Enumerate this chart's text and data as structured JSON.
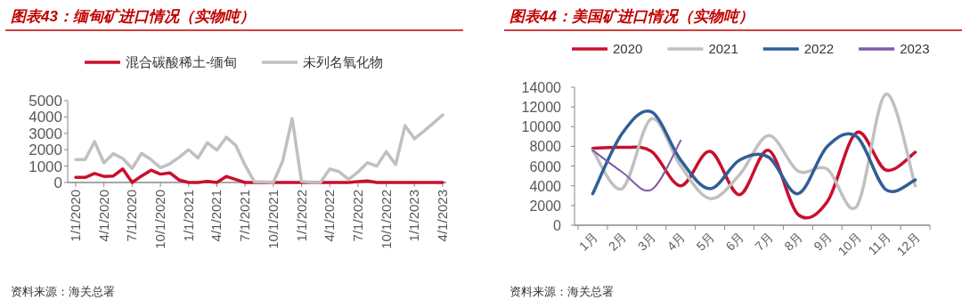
{
  "chart_data": [
    {
      "type": "line",
      "title": "图表43：缅甸矿进口情况（实物吨）",
      "annotations": [
        "资料来源：海关总署"
      ],
      "legend": "top",
      "grid": false,
      "categories": [
        "1/1/2020",
        null,
        null,
        "4/1/2020",
        null,
        null,
        "7/1/2020",
        null,
        null,
        "10/1/2020",
        null,
        null,
        "1/1/2021",
        null,
        null,
        "4/1/2021",
        null,
        null,
        "7/1/2021",
        null,
        null,
        "10/1/2021",
        null,
        null,
        "1/1/2022",
        null,
        null,
        "4/1/2022",
        null,
        null,
        "7/1/2022",
        null,
        null,
        "10/1/2022",
        null,
        null,
        "1/1/2023",
        null,
        null,
        "4/1/2023"
      ],
      "ylim": [
        0,
        5000
      ],
      "yticks": [
        0,
        1000,
        2000,
        3000,
        4000,
        5000
      ],
      "series": [
        {
          "name": "混合碳酸稀土-缅甸",
          "color": "#c8102e",
          "values": [
            310,
            310,
            550,
            370,
            400,
            830,
            0,
            400,
            750,
            510,
            590,
            150,
            0,
            0,
            70,
            0,
            370,
            180,
            0,
            0,
            0,
            0,
            0,
            0,
            0,
            0,
            0,
            0,
            0,
            0,
            50,
            100,
            0,
            0,
            0,
            0,
            0,
            0,
            0,
            0
          ]
        },
        {
          "name": "未列名氧化物",
          "color": "#c0c0c0",
          "values": [
            1400,
            1400,
            2500,
            1200,
            1760,
            1470,
            860,
            1780,
            1400,
            900,
            1140,
            1540,
            2000,
            1500,
            2430,
            1970,
            2760,
            2280,
            1050,
            40,
            40,
            0,
            1320,
            3900,
            70,
            20,
            0,
            830,
            660,
            180,
            640,
            1210,
            1000,
            1880,
            1100,
            3470,
            2670,
            3130,
            3620,
            4120
          ]
        }
      ]
    },
    {
      "type": "line",
      "title": "图表44：美国矿进口情况（实物吨）",
      "annotations": [
        "资料来源：海关总署"
      ],
      "legend": "top",
      "grid": false,
      "categories": [
        "1月",
        "2月",
        "3月",
        "4月",
        "5月",
        "6月",
        "7月",
        "8月",
        "9月",
        "10月",
        "11月",
        "12月"
      ],
      "ylim": [
        0,
        14000
      ],
      "yticks": [
        0,
        2000,
        4000,
        6000,
        8000,
        10000,
        12000,
        14000
      ],
      "series": [
        {
          "name": "2020",
          "color": "#c8102e",
          "values": [
            7800,
            7900,
            7500,
            4000,
            7500,
            3100,
            7600,
            1100,
            2400,
            9400,
            5600,
            7400
          ]
        },
        {
          "name": "2021",
          "color": "#c0c0c0",
          "values": [
            7600,
            3700,
            10800,
            6000,
            2700,
            5100,
            9100,
            5500,
            5700,
            1900,
            13300,
            4000
          ]
        },
        {
          "name": "2022",
          "color": "#2f5f96",
          "values": [
            3200,
            9300,
            11500,
            6600,
            3700,
            6600,
            6900,
            3200,
            8000,
            9000,
            3600,
            4600
          ]
        },
        {
          "name": "2023",
          "color": "#7f5ba6",
          "values": [
            7600,
            5400,
            3600,
            8600,
            null,
            null,
            null,
            null,
            null,
            null,
            null,
            null
          ]
        }
      ]
    }
  ]
}
